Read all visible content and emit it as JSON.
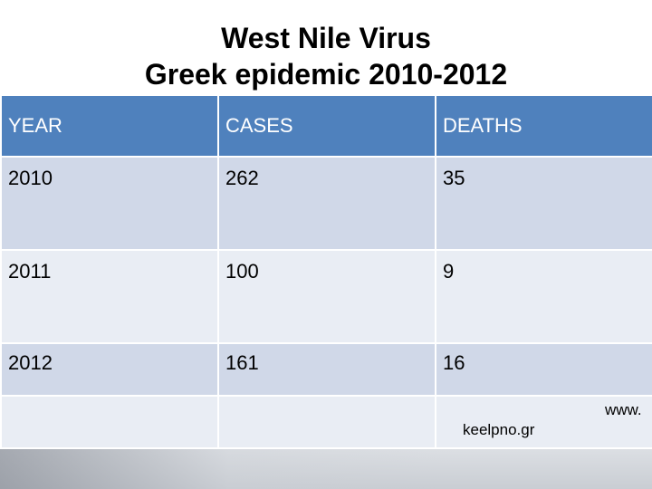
{
  "title": {
    "line1": "West Nile Virus",
    "line2": "Greek epidemic 2010-2012"
  },
  "table": {
    "headers": [
      "YEAR",
      "CASES",
      "DEATHS"
    ],
    "rows": [
      [
        "2010",
        "262",
        "35"
      ],
      [
        "2011",
        "100",
        "9"
      ],
      [
        "2012",
        "161",
        "16"
      ]
    ]
  },
  "source": {
    "prefix": "www.",
    "domain": "keelpno.gr"
  },
  "colors": {
    "header": "#4f81bd",
    "row_dark": "#d0d8e8",
    "row_light": "#e9edf4"
  }
}
